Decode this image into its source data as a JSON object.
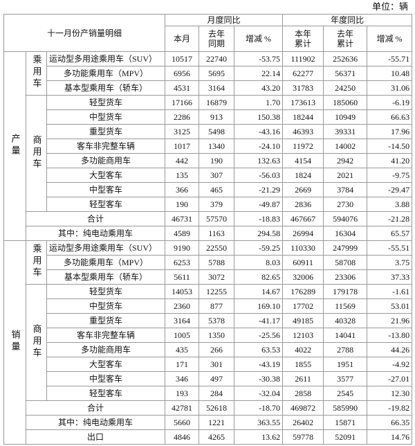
{
  "unit": "单位：辆",
  "header": {
    "title": "十一月份产销量明细",
    "groups": [
      "月度同比",
      "年度同比"
    ],
    "columns": [
      "本月",
      "去年\n同期",
      "增减 %",
      "本年\n累计",
      "去年\n累计",
      "增减 %"
    ]
  },
  "sections": [
    {
      "label": "产量",
      "groups": [
        {
          "label": "乘用车",
          "rows": [
            {
              "name": "运动型多用途乘用车（SUV）",
              "values": [
                "10517",
                "22740",
                "-53.75",
                "111902",
                "252636",
                "-55.71"
              ]
            },
            {
              "name": "多功能乘用车（MPV）",
              "values": [
                "6956",
                "5695",
                "22.14",
                "62277",
                "56371",
                "10.48"
              ]
            },
            {
              "name": "基本型乘用车（轿车）",
              "values": [
                "4531",
                "3164",
                "43.20",
                "31783",
                "24250",
                "31.06"
              ]
            }
          ]
        },
        {
          "label": "商用车",
          "rows": [
            {
              "name": "轻型货车",
              "values": [
                "17166",
                "16879",
                "1.70",
                "173613",
                "185060",
                "-6.19"
              ]
            },
            {
              "name": "中型货车",
              "values": [
                "2286",
                "913",
                "150.38",
                "18244",
                "10949",
                "66.63"
              ]
            },
            {
              "name": "重型货车",
              "values": [
                "3125",
                "5498",
                "-43.16",
                "46393",
                "39331",
                "17.96"
              ]
            },
            {
              "name": "客车非完整车辆",
              "values": [
                "1017",
                "1340",
                "-24.10",
                "11972",
                "14002",
                "-14.50"
              ]
            },
            {
              "name": "多功能商用车",
              "values": [
                "442",
                "190",
                "132.63",
                "4154",
                "2942",
                "41.20"
              ]
            },
            {
              "name": "大型客车",
              "values": [
                "135",
                "307",
                "-56.03",
                "1824",
                "2021",
                "-9.75"
              ]
            },
            {
              "name": "中型客车",
              "values": [
                "366",
                "465",
                "-21.29",
                "2669",
                "3784",
                "-29.47"
              ]
            },
            {
              "name": "轻型客车",
              "values": [
                "190",
                "379",
                "-49.87",
                "2836",
                "2730",
                "3.88"
              ]
            }
          ]
        }
      ],
      "totals": [
        {
          "name": "合计",
          "values": [
            "46731",
            "57570",
            "-18.83",
            "467667",
            "594076",
            "-21.28"
          ]
        },
        {
          "name": "其中：纯电动乘用车",
          "values": [
            "4589",
            "1163",
            "294.58",
            "26994",
            "16304",
            "65.57"
          ]
        }
      ]
    },
    {
      "label": "销量",
      "groups": [
        {
          "label": "乘用车",
          "rows": [
            {
              "name": "运动型多用途乘用车（SUV）",
              "values": [
                "9190",
                "22550",
                "-59.25",
                "110330",
                "247999",
                "-55.51"
              ]
            },
            {
              "name": "多功能乘用车（MPV）",
              "values": [
                "6253",
                "5788",
                "8.03",
                "60911",
                "58708",
                "3.75"
              ]
            },
            {
              "name": "基本型乘用车（轿车）",
              "values": [
                "5611",
                "3072",
                "82.65",
                "32006",
                "23306",
                "37.33"
              ]
            }
          ]
        },
        {
          "label": "商用车",
          "rows": [
            {
              "name": "轻型货车",
              "values": [
                "14053",
                "12255",
                "14.67",
                "176289",
                "179178",
                "-1.61"
              ]
            },
            {
              "name": "中型货车",
              "values": [
                "2360",
                "877",
                "169.10",
                "17702",
                "11569",
                "53.01"
              ]
            },
            {
              "name": "重型货车",
              "values": [
                "3164",
                "5378",
                "-41.17",
                "49185",
                "40328",
                "21.96"
              ]
            },
            {
              "name": "客车非完整车辆",
              "values": [
                "1005",
                "1350",
                "-25.56",
                "12103",
                "14041",
                "-13.80"
              ]
            },
            {
              "name": "多功能商用车",
              "values": [
                "435",
                "266",
                "63.53",
                "4022",
                "2788",
                "44.26"
              ]
            },
            {
              "name": "大型客车",
              "values": [
                "171",
                "301",
                "-43.19",
                "1855",
                "1951",
                "-4.92"
              ]
            },
            {
              "name": "中型客车",
              "values": [
                "346",
                "497",
                "-30.38",
                "2611",
                "3577",
                "-27.01"
              ]
            },
            {
              "name": "轻型客车",
              "values": [
                "193",
                "284",
                "-32.04",
                "2858",
                "2545",
                "12.30"
              ]
            }
          ]
        }
      ],
      "totals": [
        {
          "name": "合计",
          "values": [
            "42781",
            "52618",
            "-18.70",
            "469872",
            "585990",
            "-19.82"
          ]
        },
        {
          "name": "其中：纯电动乘用车",
          "values": [
            "5660",
            "1221",
            "363.55",
            "26402",
            "15871",
            "66.35"
          ]
        },
        {
          "name": "出口",
          "values": [
            "4846",
            "4265",
            "13.62",
            "59778",
            "52091",
            "14.76"
          ]
        }
      ]
    }
  ]
}
